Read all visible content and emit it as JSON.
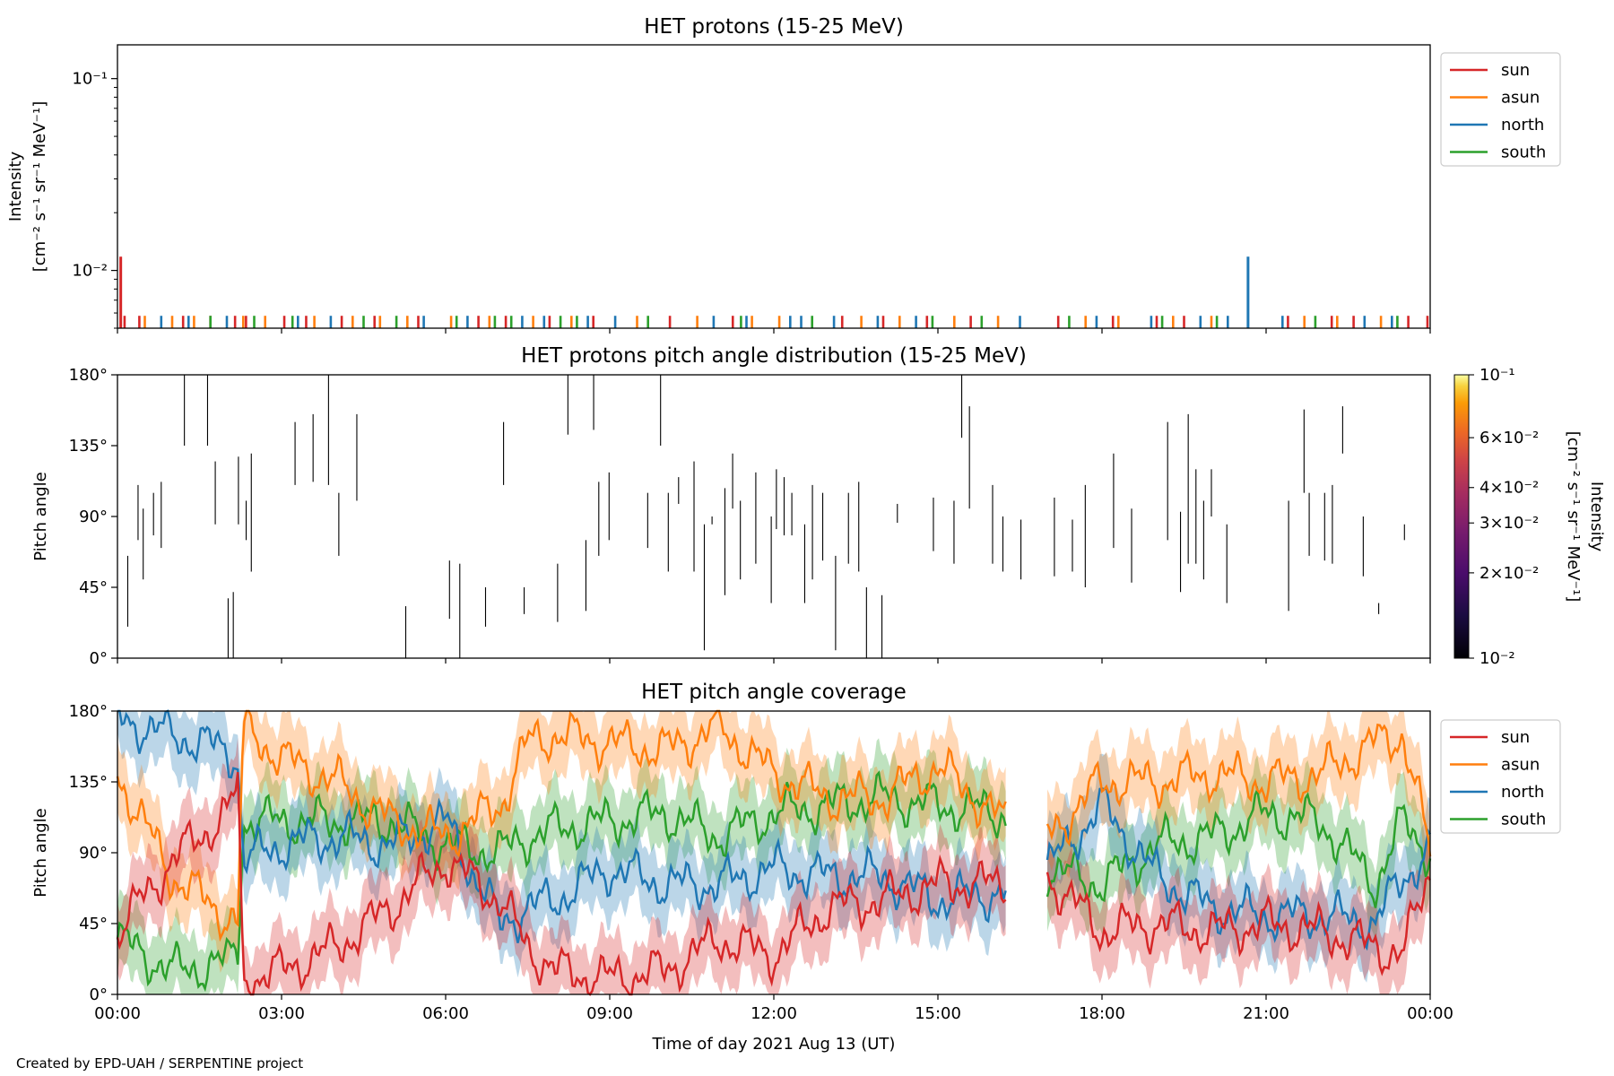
{
  "footer": "Created by EPD-UAH / SERPENTINE project",
  "colors": {
    "sun": "#d62728",
    "asun": "#ff7f0e",
    "north": "#1f77b4",
    "south": "#2ca02c"
  },
  "legend": [
    "sun",
    "asun",
    "north",
    "south"
  ],
  "chart_data": [
    {
      "type": "bar",
      "title": "HET protons (15-25 MeV)",
      "ylabel_line1": "Intensity",
      "ylabel_line2": "[cm⁻² s⁻¹ sr⁻¹ MeV⁻¹]",
      "yscale": "log",
      "ylim": [
        0.005,
        0.15
      ],
      "yticks": [
        {
          "label": "10⁻¹",
          "value": 0.1
        },
        {
          "label": "10⁻²",
          "value": 0.01
        }
      ],
      "legend_position": "upper right, outside",
      "background_level": 0.0058,
      "spikes": [
        {
          "series": "sun",
          "x": 0.06,
          "value": 0.0118
        },
        {
          "series": "north",
          "x": 20.67,
          "value": 0.0118
        }
      ],
      "events": {
        "sun": [
          0.13,
          0.4,
          1.2,
          1.7,
          2.15,
          2.35,
          3.05,
          3.45,
          4.1,
          4.7,
          5.5,
          6.6,
          7.1,
          7.9,
          8.7,
          10.1,
          11.25,
          13.25,
          14.0,
          14.8,
          15.6,
          17.2,
          18.2,
          19.0,
          19.5,
          21.4,
          22.2,
          22.6,
          23.6,
          23.95
        ],
        "asun": [
          0.5,
          1.0,
          1.4,
          2.3,
          2.7,
          3.6,
          4.3,
          4.8,
          5.3,
          6.1,
          6.8,
          7.6,
          8.3,
          9.5,
          10.6,
          11.6,
          12.1,
          13.6,
          14.3,
          15.3,
          16.1,
          17.7,
          18.3,
          19.3,
          20.0,
          21.7,
          22.3,
          23.1
        ],
        "north": [
          0.8,
          1.3,
          2.0,
          3.3,
          3.9,
          5.6,
          6.4,
          7.4,
          7.8,
          8.6,
          9.1,
          10.9,
          11.5,
          12.3,
          12.5,
          13.1,
          13.9,
          14.6,
          16.5,
          17.9,
          18.9,
          19.8,
          20.3,
          21.3,
          22.8,
          23.3
        ],
        "south": [
          1.7,
          2.5,
          3.2,
          4.5,
          5.1,
          6.2,
          6.9,
          7.2,
          8.1,
          8.4,
          9.7,
          11.4,
          12.7,
          14.9,
          15.8,
          17.4,
          19.1,
          20.1,
          21.9,
          23.4
        ]
      }
    },
    {
      "type": "heatmap",
      "title": "HET protons pitch angle distribution (15-25 MeV)",
      "ylabel": "Pitch angle",
      "ylim": [
        0,
        180
      ],
      "yticks": [
        "0°",
        "45°",
        "90°",
        "135°",
        "180°"
      ],
      "colorbar": {
        "label": "Intensity",
        "units": "[cm⁻² s⁻¹ sr⁻¹ MeV⁻¹]",
        "scale": "log",
        "range": [
          0.01,
          0.1
        ],
        "ticks": [
          {
            "label": "10⁻¹",
            "value": 0.1
          },
          {
            "label": "6×10⁻²",
            "value": 0.06
          },
          {
            "label": "4×10⁻²",
            "value": 0.04
          },
          {
            "label": "3×10⁻²",
            "value": 0.03
          },
          {
            "label": "2×10⁻²",
            "value": 0.02
          },
          {
            "label": "10⁻²",
            "value": 0.01
          }
        ]
      },
      "segments": [
        [
          0.2,
          20,
          65
        ],
        [
          0.4,
          75,
          110
        ],
        [
          0.5,
          50,
          95
        ],
        [
          0.7,
          78,
          105
        ],
        [
          0.85,
          70,
          112
        ],
        [
          1.3,
          135,
          180
        ],
        [
          1.75,
          135,
          180
        ],
        [
          1.9,
          85,
          125
        ],
        [
          2.15,
          0,
          38
        ],
        [
          2.25,
          0,
          42
        ],
        [
          2.35,
          85,
          128
        ],
        [
          2.5,
          75,
          100
        ],
        [
          2.6,
          55,
          130
        ],
        [
          3.45,
          110,
          150
        ],
        [
          3.8,
          112,
          155
        ],
        [
          4.1,
          110,
          180
        ],
        [
          4.3,
          65,
          105
        ],
        [
          4.65,
          100,
          155
        ],
        [
          5.6,
          0,
          33
        ],
        [
          6.45,
          25,
          62
        ],
        [
          6.65,
          0,
          60
        ],
        [
          7.15,
          20,
          45
        ],
        [
          7.5,
          110,
          150
        ],
        [
          7.9,
          28,
          45
        ],
        [
          8.55,
          23,
          60
        ],
        [
          8.75,
          142,
          180
        ],
        [
          9.1,
          30,
          75
        ],
        [
          9.25,
          145,
          180
        ],
        [
          9.35,
          65,
          112
        ],
        [
          9.55,
          75,
          118
        ],
        [
          10.3,
          70,
          105
        ],
        [
          10.55,
          135,
          180
        ],
        [
          10.7,
          55,
          105
        ],
        [
          10.9,
          98,
          115
        ],
        [
          11.2,
          55,
          125
        ],
        [
          11.4,
          5,
          85
        ],
        [
          11.55,
          85,
          90
        ],
        [
          11.8,
          40,
          108
        ],
        [
          11.95,
          95,
          130
        ],
        [
          12.1,
          50,
          100
        ],
        [
          12.4,
          60,
          118
        ],
        [
          12.7,
          35,
          90
        ],
        [
          12.8,
          82,
          120
        ],
        [
          12.95,
          78,
          115
        ],
        [
          13.1,
          78,
          105
        ],
        [
          13.35,
          35,
          85
        ],
        [
          13.5,
          50,
          110
        ],
        [
          13.7,
          62,
          105
        ],
        [
          13.95,
          5,
          65
        ],
        [
          14.2,
          60,
          105
        ],
        [
          14.4,
          55,
          112
        ],
        [
          14.55,
          0,
          45
        ],
        [
          14.85,
          0,
          40
        ],
        [
          15.15,
          86,
          98
        ],
        [
          15.85,
          68,
          102
        ],
        [
          16.25,
          60,
          100
        ],
        [
          16.4,
          140,
          180
        ],
        [
          16.55,
          95,
          160
        ],
        [
          17.0,
          60,
          110
        ],
        [
          17.2,
          55,
          90
        ],
        [
          17.55,
          50,
          88
        ],
        [
          18.2,
          52,
          102
        ],
        [
          18.55,
          55,
          88
        ],
        [
          18.8,
          45,
          110
        ],
        [
          19.35,
          70,
          130
        ],
        [
          19.7,
          48,
          95
        ],
        [
          20.4,
          75,
          150
        ],
        [
          20.65,
          42,
          93
        ],
        [
          20.8,
          60,
          155
        ],
        [
          20.95,
          60,
          120
        ],
        [
          21.1,
          50,
          100
        ],
        [
          21.25,
          90,
          120
        ],
        [
          21.55,
          35,
          85
        ],
        [
          22.75,
          30,
          100
        ],
        [
          23.05,
          105,
          158
        ],
        [
          23.15,
          65,
          105
        ],
        [
          23.45,
          62,
          105
        ],
        [
          23.6,
          60,
          110
        ],
        [
          23.8,
          130,
          160
        ],
        [
          24.2,
          52,
          90
        ],
        [
          24.5,
          28,
          35
        ],
        [
          25.0,
          75,
          85
        ]
      ]
    },
    {
      "type": "line",
      "title": "HET pitch angle coverage",
      "ylabel": "Pitch angle",
      "xlabel": "Time of day 2021 Aug 13 (UT)",
      "ylim": [
        0,
        180
      ],
      "yticks": [
        "0°",
        "45°",
        "90°",
        "135°",
        "180°"
      ],
      "xlim_hours": [
        0,
        24
      ],
      "xticks": [
        "00:00",
        "03:00",
        "06:00",
        "09:00",
        "12:00",
        "15:00",
        "18:00",
        "21:00",
        "00:00"
      ],
      "data_gap_hours": [
        16.25,
        17.0
      ],
      "band_halfwidth_deg": 22,
      "legend_position": "upper right, outside",
      "series": [
        {
          "name": "sun",
          "x": [
            0,
            1,
            2,
            2.2,
            2.3,
            3,
            4,
            5,
            6,
            7,
            7.5,
            8,
            9,
            10,
            11,
            12,
            13,
            14,
            15,
            16.2,
            17,
            18,
            19,
            20,
            21,
            22,
            23,
            23.5,
            24
          ],
          "y": [
            40,
            85,
            115,
            130,
            10,
            15,
            30,
            55,
            85,
            60,
            30,
            15,
            10,
            15,
            35,
            25,
            55,
            60,
            70,
            70,
            75,
            40,
            45,
            40,
            45,
            40,
            30,
            25,
            80
          ]
        },
        {
          "name": "asun",
          "x": [
            0,
            1,
            2,
            2.2,
            2.3,
            3,
            4,
            5,
            6,
            7,
            7.5,
            8,
            9,
            10,
            11,
            12,
            13,
            14,
            15,
            16.2,
            17,
            18,
            19,
            20,
            21,
            22,
            23,
            23.5,
            24
          ],
          "y": [
            140,
            75,
            50,
            45,
            170,
            150,
            135,
            110,
            100,
            120,
            160,
            165,
            160,
            155,
            170,
            140,
            125,
            125,
            145,
            110,
            100,
            135,
            135,
            140,
            135,
            140,
            160,
            165,
            90
          ]
        },
        {
          "name": "north",
          "x": [
            0,
            1,
            2,
            2.2,
            2.3,
            3,
            4,
            5,
            6,
            7,
            7.5,
            8,
            9,
            10,
            11,
            12,
            13,
            14,
            15,
            16.2,
            17,
            18,
            19,
            20,
            21,
            22,
            23,
            23.5,
            24
          ],
          "y": [
            175,
            165,
            155,
            150,
            85,
            95,
            100,
            95,
            110,
            45,
            55,
            60,
            80,
            70,
            70,
            80,
            75,
            75,
            60,
            65,
            80,
            120,
            75,
            55,
            50,
            50,
            45,
            75,
            90
          ]
        },
        {
          "name": "south",
          "x": [
            0,
            1,
            2,
            2.2,
            2.3,
            3,
            4,
            5,
            6,
            7,
            7.5,
            8,
            9,
            10,
            11,
            12,
            13,
            14,
            15,
            16.2,
            17,
            18,
            19,
            20,
            21,
            22,
            23,
            23.5,
            24
          ],
          "y": [
            35,
            15,
            20,
            30,
            110,
            110,
            110,
            110,
            95,
            90,
            100,
            105,
            110,
            115,
            100,
            115,
            120,
            125,
            120,
            115,
            80,
            70,
            95,
            100,
            115,
            110,
            70,
            110,
            90
          ]
        }
      ]
    }
  ]
}
